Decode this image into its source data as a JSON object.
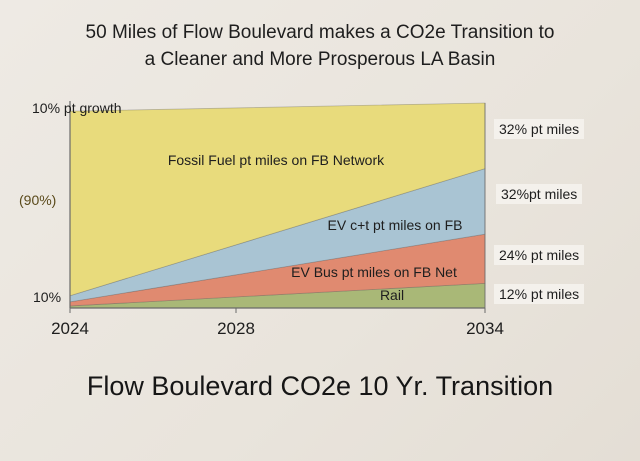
{
  "title_line1": "50 Miles of Flow Boulevard makes a CO2e Transition to",
  "title_line2": "a Cleaner and More Prosperous LA Basin",
  "footer_title": "Flow Boulevard CO2e 10 Yr. Transition",
  "top_left_label": "10% pt growth",
  "left_label_mid": "(90%)",
  "left_label_bottom": "10%",
  "colors": {
    "fossil": "#e8db7c",
    "ev_ct": "#a9c4d3",
    "ev_bus": "#e08a70",
    "rail": "#a9b877",
    "axis": "#6a6a6a"
  },
  "chart_data": {
    "type": "area",
    "title": "50 Miles of Flow Boulevard makes a CO2e Transition to a Cleaner and More Prosperous LA Basin",
    "x": [
      2024,
      2034
    ],
    "x_ticks": [
      "2024",
      "2028",
      "2034"
    ],
    "stacked": true,
    "series": [
      {
        "name": "Rail",
        "values": [
          1,
          12
        ],
        "end_label": "12% pt miles"
      },
      {
        "name": "EV Bus pt miles on FB Net",
        "values": [
          2,
          24
        ],
        "end_label": "24% pt miles"
      },
      {
        "name": "EV c+t pt miles on FB",
        "values": [
          3,
          32
        ],
        "end_label": "32%pt miles"
      },
      {
        "name": "Fossil Fuel pt miles on FB Network",
        "values": [
          90,
          32
        ],
        "end_label": "32% pt miles"
      }
    ],
    "grid": false
  }
}
